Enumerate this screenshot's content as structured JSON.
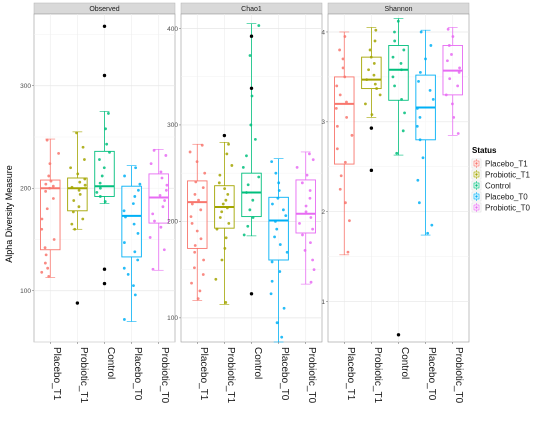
{
  "chart_data": {
    "type": "box",
    "ylabel": "Alpha Diversity Measure",
    "categories": [
      "Placebo_T1",
      "Probiotic_T1",
      "Control",
      "Placebo_T0",
      "Probiotic_T0"
    ],
    "legend": {
      "title": "Status",
      "position": "right",
      "entries": [
        "Placebo_T1",
        "Probiotic_T1",
        "Control",
        "Placebo_T0",
        "Probiotic_T0"
      ]
    },
    "colors": [
      "#F8766D",
      "#A3A500",
      "#00BF7D",
      "#00B0F6",
      "#E76BF3"
    ],
    "grid": true,
    "panels": [
      {
        "title": "Observed",
        "ylim": [
          50,
          370
        ],
        "ticks": [
          100,
          200,
          300
        ],
        "boxes": [
          {
            "category": "Placebo_T1",
            "q1": 140,
            "median": 200,
            "q3": 208,
            "whisker_low": 113,
            "whisker_high": 248,
            "outliers": [],
            "points": [
              114,
              118,
              122,
              127,
              135,
              142,
              150,
              160,
              170,
              180,
              190,
              197,
              200,
              202,
              204,
              207,
              212,
              224,
              234,
              247
            ]
          },
          {
            "category": "Probiotic_T1",
            "q1": 178,
            "median": 200,
            "q3": 210,
            "whisker_low": 160,
            "whisker_high": 255,
            "outliers": [
              88
            ],
            "points": [
              160,
              165,
              170,
              177,
              182,
              188,
              194,
              198,
              201,
              203,
              206,
              209,
              214,
              220,
              228,
              240,
              254
            ]
          },
          {
            "category": "Control",
            "q1": 192,
            "median": 202,
            "q3": 236,
            "whisker_low": 185,
            "whisker_high": 275,
            "outliers": [
              107,
              121,
              310,
              358
            ],
            "points": [
              187,
              192,
              196,
              200,
              205,
              212,
              220,
              228,
              235,
              243,
              258,
              273
            ]
          },
          {
            "category": "Placebo_T0",
            "q1": 133,
            "median": 173,
            "q3": 202,
            "whisker_low": 70,
            "whisker_high": 222,
            "outliers": [],
            "points": [
              72,
              96,
              105,
              116,
              122,
              130,
              138,
              147,
              156,
              165,
              172,
              178,
              185,
              192,
              198,
              204,
              212,
              220
            ]
          },
          {
            "category": "Probiotic_T0",
            "q1": 166,
            "median": 191,
            "q3": 214,
            "whisker_low": 120,
            "whisker_high": 238,
            "outliers": [],
            "points": [
              121,
              140,
              152,
              162,
              168,
              175,
              182,
              188,
              193,
              198,
              203,
              210,
              216,
              224,
              232,
              237
            ]
          }
        ]
      },
      {
        "title": "Chao1",
        "ylim": [
          75,
          415
        ],
        "ticks": [
          100,
          200,
          300,
          400
        ],
        "boxes": [
          {
            "category": "Placebo_T1",
            "q1": 172,
            "median": 220,
            "q3": 242,
            "whisker_low": 118,
            "whisker_high": 280,
            "outliers": [],
            "points": [
              120,
              128,
              136,
              145,
              152,
              160,
              168,
              175,
              182,
              190,
              198,
              205,
              212,
              218,
              222,
              228,
              235,
              241,
              250,
              262,
              272,
              279
            ]
          },
          {
            "category": "Probiotic_T1",
            "q1": 193,
            "median": 215,
            "q3": 237,
            "whisker_low": 114,
            "whisker_high": 282,
            "outliers": [
              289
            ],
            "points": [
              116,
              140,
              160,
              172,
              183,
              192,
              198,
              204,
              210,
              214,
              218,
              222,
              228,
              234,
              240,
              248,
              258,
              270,
              280
            ]
          },
          {
            "category": "Control",
            "q1": 205,
            "median": 230,
            "q3": 250,
            "whisker_low": 185,
            "whisker_high": 405,
            "outliers": [
              125,
              338,
              392
            ],
            "points": [
              186,
              195,
              204,
              212,
              222,
              230,
              238,
              246,
              256,
              268,
              285,
              300,
              330,
              372,
              403
            ]
          },
          {
            "category": "Placebo_T0",
            "q1": 160,
            "median": 201,
            "q3": 225,
            "whisker_low": 75,
            "whisker_high": 265,
            "outliers": [],
            "points": [
              80,
              95,
              110,
              125,
              138,
              148,
              158,
              168,
              176,
              184,
              192,
              200,
              206,
              212,
              218,
              224,
              232,
              240,
              250,
              262
            ]
          },
          {
            "category": "Probiotic_T0",
            "q1": 188,
            "median": 208,
            "q3": 243,
            "whisker_low": 135,
            "whisker_high": 272,
            "outliers": [],
            "points": [
              137,
              150,
              160,
              170,
              178,
              186,
              192,
              198,
              204,
              210,
              216,
              224,
              232,
              240,
              248,
              256,
              264,
              270
            ]
          }
        ]
      },
      {
        "title": "Shannon",
        "ylim": [
          0.55,
          4.2
        ],
        "ticks": [
          1,
          2,
          3,
          4
        ],
        "boxes": [
          {
            "category": "Placebo_T1",
            "q1": 2.53,
            "median": 3.2,
            "q3": 3.5,
            "whisker_low": 1.52,
            "whisker_high": 4.0,
            "outliers": [],
            "points": [
              1.55,
              1.9,
              2.1,
              2.25,
              2.4,
              2.55,
              2.7,
              2.85,
              2.95,
              3.05,
              3.15,
              3.22,
              3.3,
              3.4,
              3.5,
              3.6,
              3.7,
              3.8,
              3.95
            ]
          },
          {
            "category": "Probiotic_T1",
            "q1": 3.37,
            "median": 3.47,
            "q3": 3.72,
            "whisker_low": 3.05,
            "whisker_high": 4.05,
            "outliers": [
              2.46,
              2.93
            ],
            "points": [
              3.08,
              3.2,
              3.3,
              3.37,
              3.42,
              3.47,
              3.52,
              3.58,
              3.65,
              3.72,
              3.8,
              3.9,
              4.02
            ]
          },
          {
            "category": "Control",
            "q1": 3.24,
            "median": 3.58,
            "q3": 3.85,
            "whisker_low": 2.63,
            "whisker_high": 4.15,
            "outliers": [
              0.63
            ],
            "points": [
              2.65,
              2.9,
              3.1,
              3.25,
              3.4,
              3.5,
              3.58,
              3.65,
              3.72,
              3.8,
              3.9,
              4.0,
              4.12
            ]
          },
          {
            "category": "Placebo_T0",
            "q1": 2.8,
            "median": 3.16,
            "q3": 3.52,
            "whisker_low": 1.74,
            "whisker_high": 4.02,
            "outliers": [],
            "points": [
              1.76,
              1.85,
              2.1,
              2.35,
              2.6,
              2.8,
              2.95,
              3.05,
              3.15,
              3.25,
              3.35,
              3.45,
              3.55,
              3.7,
              3.85,
              4.0
            ]
          },
          {
            "category": "Probiotic_T0",
            "q1": 3.3,
            "median": 3.57,
            "q3": 3.85,
            "whisker_low": 2.85,
            "whisker_high": 4.05,
            "outliers": [],
            "points": [
              2.87,
              3.05,
              3.2,
              3.3,
              3.4,
              3.48,
              3.55,
              3.6,
              3.68,
              3.75,
              3.85,
              3.95,
              4.03
            ]
          }
        ]
      }
    ]
  }
}
